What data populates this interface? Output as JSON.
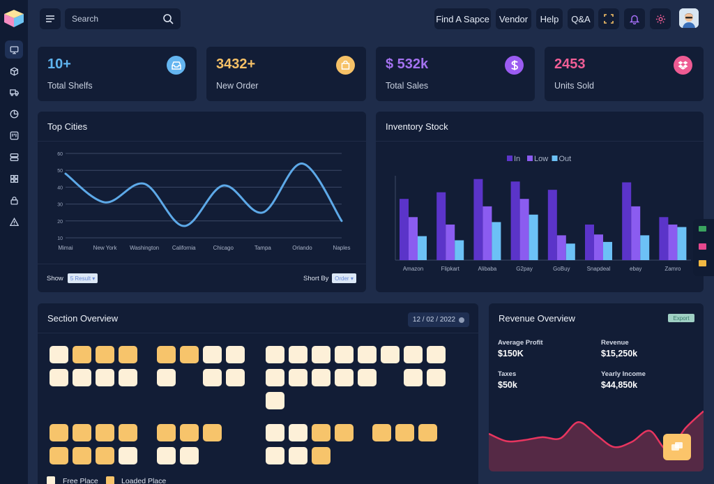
{
  "search": {
    "placeholder": "Search"
  },
  "topnav": {
    "items": [
      "Find A Sapce",
      "Vendor",
      "Help",
      "Q&A"
    ]
  },
  "stats": [
    {
      "value": "10+",
      "label": "Total Shelfs",
      "color": "#5fb4ef",
      "icon": "inbox-icon",
      "icon_bg": "#64b5f0"
    },
    {
      "value": "3432+",
      "label": "New Order",
      "color": "#f6c167",
      "icon": "shopping-bag-icon",
      "icon_bg": "#f6c167"
    },
    {
      "value": "$ 532k",
      "label": "Total Sales",
      "color": "#a472f0",
      "icon": "dollar-icon",
      "icon_bg": "#9b5cf2"
    },
    {
      "value": "2453",
      "label": "Units Sold",
      "color": "#f15e96",
      "icon": "dropbox-icon",
      "icon_bg": "#ee5b93"
    }
  ],
  "top_cities": {
    "title": "Top Cities",
    "show_label": "Show",
    "show_value": "5 Result",
    "sort_label": "Short By",
    "sort_value": "Order"
  },
  "inventory": {
    "title": "Inventory Stock"
  },
  "section_overview": {
    "title": "Section Overview",
    "date": "12 / 02 / 2022",
    "legend_free": "Free Place",
    "legend_loaded": "Loaded Place"
  },
  "revenue": {
    "title": "Revenue Overview",
    "export_label": "Export",
    "stats": [
      {
        "label": "Average Profit",
        "value": "$150K"
      },
      {
        "label": "Revenue",
        "value": "$15,250k"
      },
      {
        "label": "Taxes",
        "value": "$50k"
      },
      {
        "label": "Yearly Income",
        "value": "$44,850k"
      }
    ]
  },
  "colors": {
    "accent": "#f6c167",
    "line": "#5da9e8",
    "revenue_line": "#e8355f"
  },
  "chart_data": [
    {
      "type": "line",
      "title": "Top Cities",
      "categories": [
        "Mimai",
        "New York",
        "Washington",
        "California",
        "Chicago",
        "Tampa",
        "Orlando",
        "Naples"
      ],
      "values": [
        48,
        31,
        42,
        17,
        41,
        25,
        54,
        20
      ],
      "yticks": [
        10,
        20,
        30,
        40,
        50,
        60
      ],
      "ylim": [
        10,
        60
      ],
      "grid": true
    },
    {
      "type": "bar",
      "title": "Inventory Stock",
      "categories": [
        "Amazon",
        "Flipkart",
        "Alibaba",
        "G2pay",
        "GoBuy",
        "Snapdeal",
        "ebay",
        "Zamro"
      ],
      "series": [
        {
          "name": "In",
          "color": "#5b34c9",
          "values": [
            74,
            82,
            98,
            95,
            85,
            43,
            94,
            52
          ]
        },
        {
          "name": "Low",
          "color": "#8b5cf0",
          "values": [
            52,
            43,
            65,
            74,
            30,
            31,
            65,
            43
          ]
        },
        {
          "name": "Out",
          "color": "#6cc1f6",
          "values": [
            29,
            24,
            46,
            55,
            20,
            22,
            30,
            40
          ]
        }
      ],
      "ylim": [
        0,
        118
      ],
      "legend": "top-center"
    },
    {
      "type": "area",
      "title": "Revenue Overview",
      "values": [
        58,
        45,
        47,
        52,
        50,
        78,
        56,
        35,
        44,
        63,
        30,
        68,
        97
      ]
    }
  ]
}
